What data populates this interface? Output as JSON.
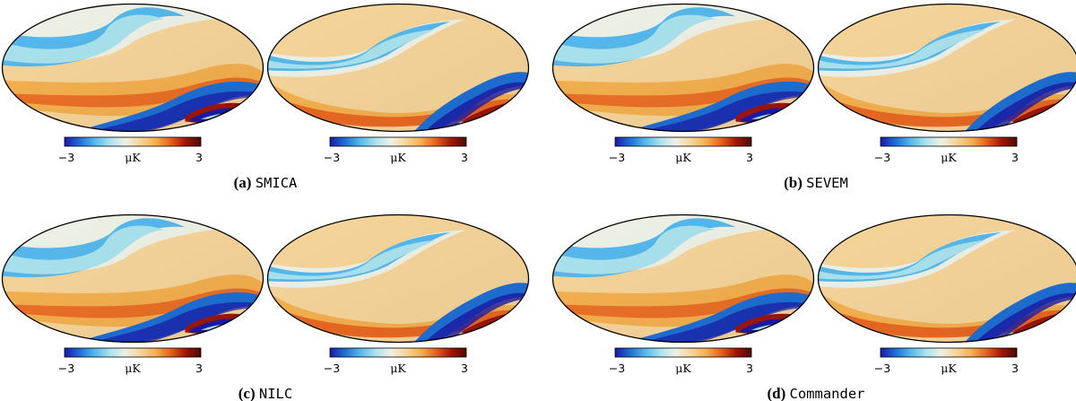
{
  "figure": {
    "colorbar": {
      "min_label": "−3",
      "max_label": "3",
      "unit": "μK",
      "min_value": -3,
      "max_value": 3,
      "colors": [
        "#1a1aa8",
        "#1f6fd6",
        "#55b8ec",
        "#a9e2ee",
        "#eef1e6",
        "#f6d59a",
        "#f5b04f",
        "#e8601c",
        "#a01508",
        "#4a0b05"
      ]
    },
    "panels": [
      {
        "label": "(a)",
        "method": "SMICA"
      },
      {
        "label": "(b)",
        "method": "SEVEM"
      },
      {
        "label": "(c)",
        "method": "NILC"
      },
      {
        "label": "(d)",
        "method": "Commander"
      }
    ]
  }
}
